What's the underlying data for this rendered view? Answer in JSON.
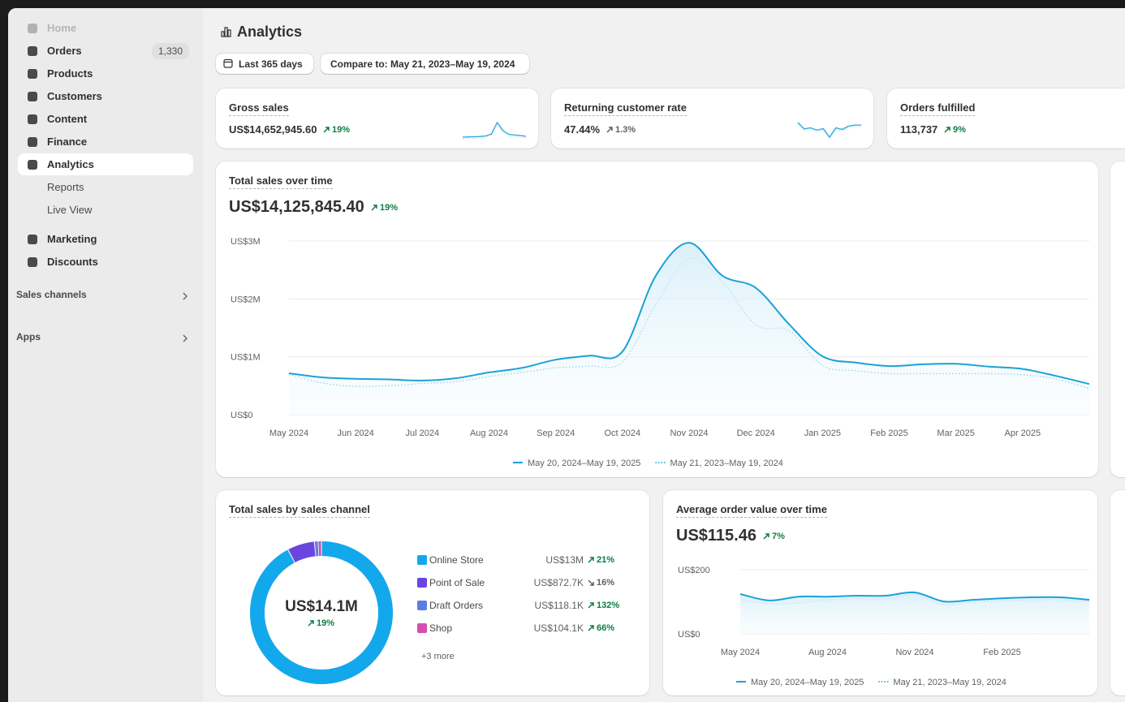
{
  "sidebar": {
    "items": [
      {
        "label": "Home",
        "disabled": true
      },
      {
        "label": "Orders",
        "badge": "1,330"
      },
      {
        "label": "Products"
      },
      {
        "label": "Customers"
      },
      {
        "label": "Content"
      },
      {
        "label": "Finance"
      },
      {
        "label": "Analytics",
        "active": true,
        "children": [
          "Reports",
          "Live View"
        ]
      },
      {
        "label": "Marketing"
      },
      {
        "label": "Discounts"
      }
    ],
    "sections": [
      "Sales channels",
      "Apps"
    ]
  },
  "header": {
    "title": "Analytics",
    "date_range": "Last 365 days",
    "compare": "Compare to: May 21, 2023–May 19, 2024"
  },
  "metrics": [
    {
      "label": "Gross sales",
      "value": "US$14,652,945.60",
      "change": "19%",
      "trend": "up",
      "tone": "positive",
      "sparkline": [
        30,
        31,
        32,
        33,
        36,
        45,
        100,
        62,
        44,
        40,
        38,
        34
      ]
    },
    {
      "label": "Returning customer rate",
      "value": "47.44%",
      "change": "1.3%",
      "trend": "up",
      "tone": "neutral",
      "sparkline": [
        75,
        52,
        56,
        48,
        53,
        22,
        56,
        50,
        62,
        66,
        66
      ]
    },
    {
      "label": "Orders fulfilled",
      "value": "113,737",
      "change": "9%",
      "trend": "up",
      "tone": "positive"
    }
  ],
  "chart_data": [
    {
      "type": "line",
      "title": "Total sales over time",
      "total": "US$14,125,845.40",
      "change": "19%",
      "trend": "up",
      "tone": "positive",
      "categories": [
        "May 2024",
        null,
        "Jun 2024",
        null,
        "Jul 2024",
        null,
        "Aug 2024",
        null,
        "Sep 2024",
        null,
        "Oct 2024",
        null,
        "Nov 2024",
        null,
        "Dec 2024",
        null,
        "Jan 2025",
        null,
        "Feb 2025",
        null,
        "Mar 2025",
        null,
        "Apr 2025",
        null,
        null
      ],
      "series": [
        {
          "name": "May 20, 2024–May 19, 2025",
          "color": "#1ba2d8",
          "style": "solid",
          "values": [
            715000,
            645000,
            620000,
            610000,
            590000,
            630000,
            730000,
            810000,
            950000,
            1020000,
            1090000,
            2400000,
            2970000,
            2400000,
            2190000,
            1560000,
            1010000,
            900000,
            840000,
            870000,
            880000,
            830000,
            790000,
            670000,
            530000
          ]
        },
        {
          "name": "May 21, 2023–May 19, 2024",
          "color": "#4bb8dc",
          "style": "dotted",
          "values": [
            700000,
            550000,
            490000,
            500000,
            540000,
            570000,
            660000,
            730000,
            810000,
            840000,
            910000,
            1900000,
            2700000,
            2300000,
            1550000,
            1450000,
            850000,
            760000,
            710000,
            710000,
            710000,
            710000,
            690000,
            620000,
            450000
          ]
        }
      ],
      "ylim": [
        0,
        3000000
      ],
      "yticks": [
        {
          "value": 0,
          "label": "US$0"
        },
        {
          "value": 1000000,
          "label": "US$1M"
        },
        {
          "value": 2000000,
          "label": "US$2M"
        },
        {
          "value": 3000000,
          "label": "US$3M"
        }
      ],
      "grid": true
    },
    {
      "type": "donut",
      "title": "Total sales by sales channel",
      "center_label": "US$14.1M",
      "change": "19%",
      "trend": "up",
      "tone": "positive",
      "categories": [
        "Online Store",
        "Point of Sale",
        "Draft Orders",
        "Shop"
      ],
      "values": [
        13000000,
        872700,
        118100,
        104100
      ],
      "value_labels": [
        "US$13M",
        "US$872.7K",
        "US$118.1K",
        "US$104.1K"
      ],
      "changes": [
        "21%",
        "16%",
        "132%",
        "66%"
      ],
      "trends": [
        "up",
        "down",
        "up",
        "up"
      ],
      "tones": [
        "positive",
        "neutral",
        "positive",
        "positive"
      ],
      "colors": [
        "#13a8ec",
        "#6b45e0",
        "#5b7de6",
        "#d44fb2"
      ],
      "more": "+3 more"
    },
    {
      "type": "line",
      "title": "Average order value over time",
      "total": "US$115.46",
      "change": "7%",
      "trend": "up",
      "tone": "positive",
      "categories": [
        "May 2024",
        null,
        null,
        "Aug 2024",
        null,
        null,
        "Nov 2024",
        null,
        null,
        "Feb 2025",
        null,
        null,
        null
      ],
      "series": [
        {
          "name": "May 20, 2024–May 19, 2025",
          "color": "#1ba2d8",
          "style": "solid",
          "values": [
            124,
            104,
            116,
            116,
            119,
            119,
            129,
            101,
            106,
            111,
            114,
            114,
            106
          ]
        },
        {
          "name": "May 21, 2023–May 19, 2024",
          "color": "#4bb8dc",
          "style": "dotted",
          "values": [
            106,
            94,
            96,
            106,
            109,
            109,
            122,
            91,
            99,
            104,
            106,
            106,
            101
          ]
        }
      ],
      "ylim": [
        0,
        200
      ],
      "yticks": [
        {
          "value": 0,
          "label": "US$0"
        },
        {
          "value": 200,
          "label": "US$200"
        }
      ],
      "grid": true
    }
  ]
}
